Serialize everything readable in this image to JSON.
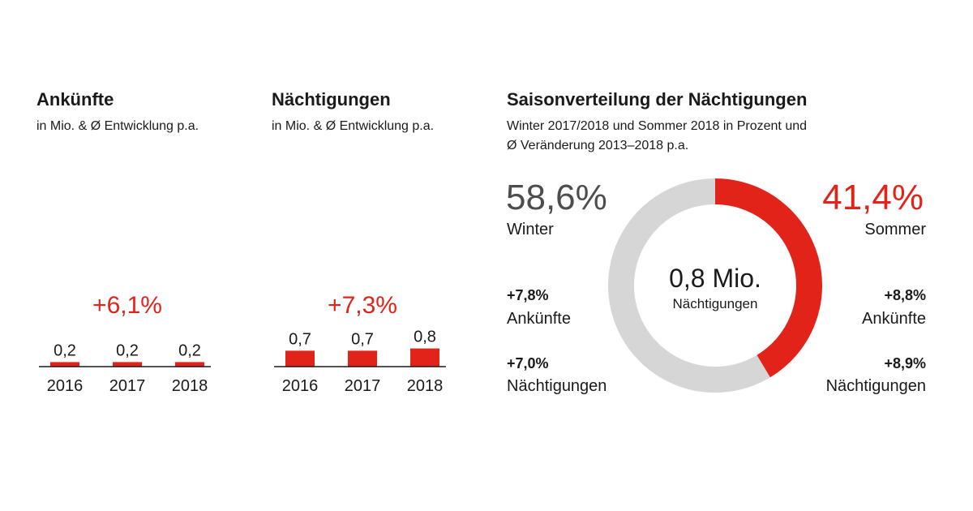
{
  "colors": {
    "accent": "#e2231a",
    "grey": "#d6d6d6",
    "text": "#1a1a1a",
    "winter_text": "#4d4d4d"
  },
  "panels": [
    {
      "title": "Ankünfte",
      "subtitle": "in Mio. & Ø Entwicklung p.a.",
      "growth": "+6,1%"
    },
    {
      "title": "Nächtigungen",
      "subtitle": "in Mio. & Ø Entwicklung p.a.",
      "growth": "+7,3%"
    }
  ],
  "season": {
    "title": "Saisonverteilung der Nächtigungen",
    "subtitle_line1": "Winter 2017/2018 und Sommer 2018 in Prozent und",
    "subtitle_line2": "Ø Veränderung 2013–2018 p.a.",
    "center_value": "0,8 Mio.",
    "center_label": "Nächtigungen",
    "winter": {
      "pct": "58,6%",
      "label": "Winter",
      "arrivals_change": "+7,8%",
      "arrivals_label": "Ankünfte",
      "nights_change": "+7,0%",
      "nights_label": "Nächtigungen"
    },
    "summer": {
      "pct": "41,4%",
      "label": "Sommer",
      "arrivals_change": "+8,8%",
      "arrivals_label": "Ankünfte",
      "nights_change": "+8,9%",
      "nights_label": "Nächtigungen"
    }
  },
  "chart_data": [
    {
      "type": "bar",
      "title": "Ankünfte",
      "subtitle": "in Mio. & Ø Entwicklung p.a.",
      "categories": [
        "2016",
        "2017",
        "2018"
      ],
      "values": [
        0.2,
        0.2,
        0.2
      ],
      "value_labels": [
        "0,2",
        "0,2",
        "0,2"
      ],
      "annotation": "+6,1%"
    },
    {
      "type": "bar",
      "title": "Nächtigungen",
      "subtitle": "in Mio. & Ø Entwicklung p.a.",
      "categories": [
        "2016",
        "2017",
        "2018"
      ],
      "values": [
        0.7,
        0.7,
        0.8
      ],
      "value_labels": [
        "0,7",
        "0,7",
        "0,8"
      ],
      "annotation": "+7,3%"
    },
    {
      "type": "pie",
      "title": "Saisonverteilung der Nächtigungen",
      "labels": [
        "Winter",
        "Sommer"
      ],
      "values": [
        58.6,
        41.4
      ],
      "value_labels": [
        "58,6%",
        "41,4%"
      ],
      "center_label": "0,8 Mio. Nächtigungen"
    }
  ]
}
